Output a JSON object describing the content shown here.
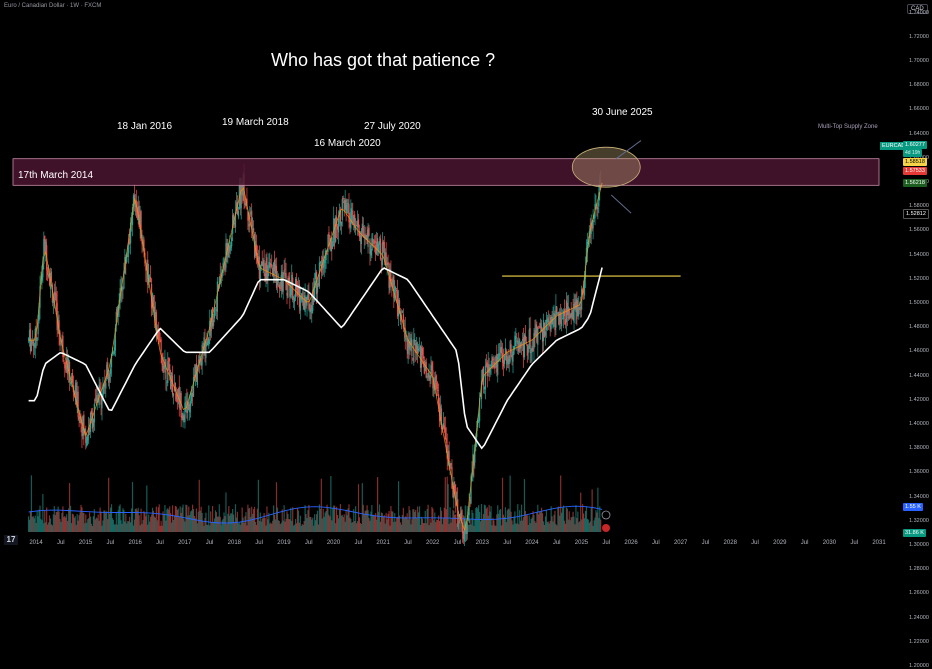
{
  "header": {
    "symbol_title": "Euro / Canadian Dollar · 1W · FXCM",
    "currency": "CAD"
  },
  "headline": "Who has got that patience ?",
  "annotations": {
    "mar2014": "17th March 2014",
    "jan2016": "18 Jan 2016",
    "mar2018": "19 March 2018",
    "mar2020": "16 March 2020",
    "jul2020": "27 July 2020",
    "jun2025": "30 June 2025",
    "zone": "Multi-Top Supply Zone"
  },
  "price_axis": [
    "1.74000",
    "1.72000",
    "1.70000",
    "1.68000",
    "1.66000",
    "1.64000",
    "1.62000",
    "1.60000",
    "1.58000",
    "1.56000",
    "1.54000",
    "1.52000",
    "1.50000",
    "1.48000",
    "1.46000",
    "1.44000",
    "1.42000",
    "1.40000",
    "1.38000",
    "1.36000",
    "1.34000",
    "1.32000",
    "1.30000",
    "1.28000",
    "1.26000",
    "1.24000",
    "1.22000",
    "1.20000"
  ],
  "time_axis": [
    "2014",
    "Jul",
    "2015",
    "Jul",
    "2016",
    "Jul",
    "2017",
    "Jul",
    "2018",
    "Jul",
    "2019",
    "Jul",
    "2020",
    "Jul",
    "2021",
    "Jul",
    "2022",
    "Jul",
    "2023",
    "Jul",
    "2024",
    "Jul",
    "2025",
    "Jul",
    "2026",
    "Jul",
    "2027",
    "Jul",
    "2028",
    "Jul",
    "2029",
    "Jul",
    "2030",
    "Jul",
    "2031"
  ],
  "price_tags": {
    "symbol": "EURCAD",
    "last": "1.60277",
    "countdown": "4d 19h",
    "tag1": "1.58518",
    "tag2": "1.57533",
    "tag3": "1.56218",
    "tag4": "1.52812",
    "volume": "1.55 K",
    "volume2": "31.86 K"
  },
  "colors": {
    "background": "#000000",
    "bull": "#26a69a",
    "bear": "#ef5350",
    "zone_fill": "#4a1530",
    "zone_border": "#c98aa8",
    "sma_white": "#ffffff",
    "ema_orange": "#ff9800",
    "support_line": "#f5d547",
    "ellipse": "#c9b27a",
    "volume_ma": "#2962ff"
  },
  "chart_data": {
    "type": "candlestick",
    "title": "",
    "timeframe": "1W",
    "x": [
      "2014-01",
      "2014-03",
      "2014-07",
      "2015-01",
      "2015-07",
      "2016-01",
      "2016-07",
      "2017-01",
      "2017-07",
      "2018-03",
      "2018-07",
      "2019-01",
      "2019-07",
      "2020-03",
      "2020-07",
      "2021-01",
      "2021-07",
      "2022-01",
      "2022-07",
      "2022-09",
      "2023-01",
      "2023-07",
      "2024-01",
      "2024-07",
      "2025-01",
      "2025-03",
      "2025-06"
    ],
    "close": [
      1.47,
      1.55,
      1.47,
      1.39,
      1.45,
      1.59,
      1.46,
      1.41,
      1.48,
      1.6,
      1.53,
      1.52,
      1.5,
      1.58,
      1.56,
      1.54,
      1.47,
      1.44,
      1.33,
      1.31,
      1.44,
      1.46,
      1.47,
      1.49,
      1.5,
      1.56,
      1.6
    ],
    "ylim": [
      1.2,
      1.75
    ],
    "xlim": [
      "2013-10",
      "2031-06"
    ],
    "levels": {
      "supply_zone": [
        1.598,
        1.62
      ],
      "support_line": 1.523
    },
    "series": [
      {
        "name": "",
        "type": "sma",
        "values": [
          1.42,
          1.45,
          1.46,
          1.45,
          1.41,
          1.45,
          1.48,
          1.46,
          1.46,
          1.49,
          1.52,
          1.52,
          1.51,
          1.48,
          1.5,
          1.53,
          1.52,
          1.49,
          1.46,
          1.4,
          1.38,
          1.42,
          1.45,
          1.47,
          1.48,
          1.49,
          1.53
        ]
      }
    ]
  }
}
